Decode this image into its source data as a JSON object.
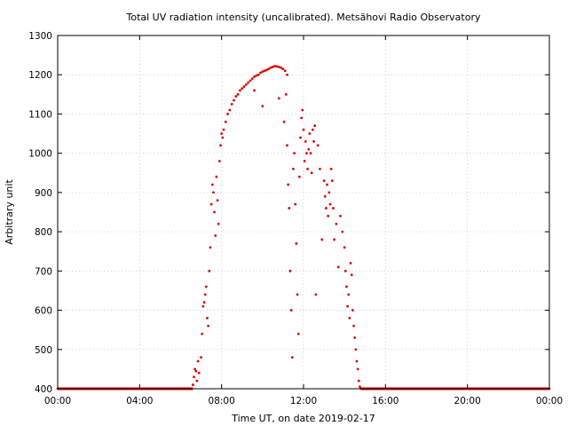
{
  "chart_data": {
    "type": "scatter",
    "title": "Total UV radiation intensity (uncalibrated). Metsähovi Radio Observatory",
    "xlabel": "Time UT, on date 2019-02-17",
    "ylabel": "Arbitrary unit",
    "xlim": [
      0,
      24
    ],
    "ylim": [
      400,
      1300
    ],
    "xticks": [
      0,
      4,
      8,
      12,
      16,
      20,
      24
    ],
    "xtick_labels": [
      "00:00",
      "04:00",
      "08:00",
      "12:00",
      "16:00",
      "20:00",
      "00:00"
    ],
    "yticks": [
      400,
      500,
      600,
      700,
      800,
      900,
      1000,
      1100,
      1200,
      1300
    ],
    "ytick_labels": [
      "400",
      "500",
      "600",
      "700",
      "800",
      "900",
      "1000",
      "1100",
      "1200",
      "1300"
    ],
    "grid": true,
    "marker_color": "#e00000",
    "series": [
      {
        "points": [
          [
            0.0,
            400
          ],
          [
            6.6,
            410
          ],
          [
            6.65,
            430
          ],
          [
            6.7,
            450
          ],
          [
            6.75,
            445
          ],
          [
            6.8,
            420
          ],
          [
            6.85,
            470
          ],
          [
            6.9,
            440
          ],
          [
            7.0,
            480
          ],
          [
            7.05,
            540
          ],
          [
            7.1,
            610
          ],
          [
            7.15,
            620
          ],
          [
            7.2,
            640
          ],
          [
            7.25,
            660
          ],
          [
            7.3,
            580
          ],
          [
            7.35,
            560
          ],
          [
            7.4,
            700
          ],
          [
            7.45,
            760
          ],
          [
            7.5,
            870
          ],
          [
            7.55,
            920
          ],
          [
            7.6,
            900
          ],
          [
            7.65,
            850
          ],
          [
            7.7,
            790
          ],
          [
            7.75,
            940
          ],
          [
            7.8,
            880
          ],
          [
            7.85,
            820
          ],
          [
            7.9,
            980
          ],
          [
            7.95,
            1020
          ],
          [
            8.0,
            1050
          ],
          [
            8.05,
            1040
          ],
          [
            8.1,
            1060
          ],
          [
            8.2,
            1080
          ],
          [
            8.3,
            1100
          ],
          [
            8.4,
            1110
          ],
          [
            8.5,
            1125
          ],
          [
            8.6,
            1135
          ],
          [
            8.7,
            1145
          ],
          [
            8.8,
            1150
          ],
          [
            8.9,
            1160
          ],
          [
            9.0,
            1165
          ],
          [
            9.1,
            1170
          ],
          [
            9.2,
            1175
          ],
          [
            9.3,
            1180
          ],
          [
            9.4,
            1185
          ],
          [
            9.5,
            1190
          ],
          [
            9.6,
            1195
          ],
          [
            9.7,
            1198
          ],
          [
            9.8,
            1200
          ],
          [
            9.9,
            1205
          ],
          [
            10.0,
            1208
          ],
          [
            10.1,
            1210
          ],
          [
            10.2,
            1212
          ],
          [
            10.3,
            1215
          ],
          [
            10.4,
            1218
          ],
          [
            10.5,
            1220
          ],
          [
            10.6,
            1222
          ],
          [
            10.7,
            1221
          ],
          [
            10.8,
            1220
          ],
          [
            10.9,
            1218
          ],
          [
            11.0,
            1215
          ],
          [
            11.1,
            1210
          ],
          [
            11.2,
            1200
          ],
          [
            10.0,
            1120
          ],
          [
            9.6,
            1160
          ],
          [
            10.8,
            1140
          ],
          [
            11.05,
            1080
          ],
          [
            11.15,
            1150
          ],
          [
            11.2,
            1020
          ],
          [
            11.25,
            920
          ],
          [
            11.3,
            860
          ],
          [
            11.35,
            700
          ],
          [
            11.4,
            600
          ],
          [
            11.45,
            480
          ],
          [
            11.5,
            960
          ],
          [
            11.55,
            1000
          ],
          [
            11.6,
            870
          ],
          [
            11.65,
            770
          ],
          [
            11.7,
            640
          ],
          [
            11.75,
            540
          ],
          [
            11.8,
            940
          ],
          [
            11.85,
            1040
          ],
          [
            11.9,
            1090
          ],
          [
            11.95,
            1110
          ],
          [
            12.0,
            1060
          ],
          [
            12.05,
            980
          ],
          [
            12.1,
            1030
          ],
          [
            12.15,
            1000
          ],
          [
            12.2,
            960
          ],
          [
            12.25,
            1010
          ],
          [
            12.3,
            1050
          ],
          [
            12.35,
            1000
          ],
          [
            12.4,
            950
          ],
          [
            12.45,
            1060
          ],
          [
            12.5,
            1030
          ],
          [
            12.55,
            1070
          ],
          [
            12.6,
            640
          ],
          [
            12.7,
            1020
          ],
          [
            12.8,
            960
          ],
          [
            12.9,
            780
          ],
          [
            13.0,
            930
          ],
          [
            13.05,
            890
          ],
          [
            13.1,
            860
          ],
          [
            13.15,
            920
          ],
          [
            13.2,
            840
          ],
          [
            13.25,
            900
          ],
          [
            13.3,
            870
          ],
          [
            13.35,
            960
          ],
          [
            13.4,
            930
          ],
          [
            13.45,
            860
          ],
          [
            13.5,
            780
          ],
          [
            13.6,
            820
          ],
          [
            13.7,
            710
          ],
          [
            13.8,
            840
          ],
          [
            13.9,
            800
          ],
          [
            14.0,
            760
          ],
          [
            14.05,
            700
          ],
          [
            14.1,
            660
          ],
          [
            14.15,
            610
          ],
          [
            14.2,
            640
          ],
          [
            14.25,
            580
          ],
          [
            14.3,
            720
          ],
          [
            14.35,
            690
          ],
          [
            14.4,
            600
          ],
          [
            14.45,
            560
          ],
          [
            14.5,
            530
          ],
          [
            14.55,
            500
          ],
          [
            14.6,
            470
          ],
          [
            14.65,
            450
          ],
          [
            14.7,
            420
          ],
          [
            14.75,
            405
          ],
          [
            14.8,
            400
          ],
          [
            24.0,
            400
          ]
        ]
      }
    ]
  }
}
